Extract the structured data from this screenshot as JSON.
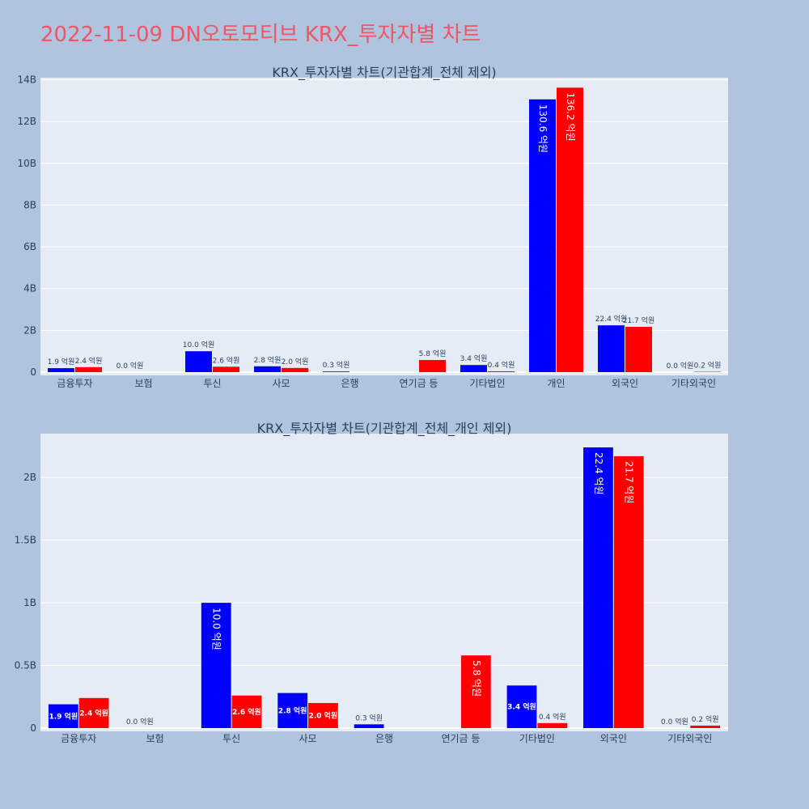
{
  "title": "2022-11-09 DN오토모티브 KRX_투자자별 차트",
  "colors": {
    "background": "#b0c4de",
    "plot_bg": "#e5ecf6",
    "buy": "#0000ff",
    "sell": "#ff0000",
    "title": "#ef5566"
  },
  "chart_data": [
    {
      "type": "bar",
      "title": "KRX_투자자별 차트(기관합계_전체 제외)",
      "categories": [
        "금융투자",
        "보험",
        "투신",
        "사모",
        "은행",
        "연기금 등",
        "기타법인",
        "개인",
        "외국인",
        "기타외국인"
      ],
      "series": [
        {
          "values": [
            0.19,
            0.0,
            1.0,
            0.28,
            0.03,
            0.0,
            0.34,
            13.06,
            2.24,
            0.0
          ],
          "labels": [
            "1.9 억원",
            "0.0 억원",
            "10.0 억원",
            "2.8 억원",
            "0.3 억원",
            "",
            "3.4 억원",
            "130.6 억원",
            "22.4 억원",
            "0.0 억원"
          ]
        },
        {
          "values": [
            0.24,
            0.0,
            0.26,
            0.2,
            0.0,
            0.58,
            0.04,
            13.62,
            2.17,
            0.02
          ],
          "labels": [
            "2.4 억원",
            "",
            "2.6 억원",
            "2.0 억원",
            "",
            "5.8 억원",
            "0.4 억원",
            "136.2 억원",
            "21.7 억원",
            "0.2 억원"
          ]
        }
      ],
      "yticks": [
        0,
        2,
        4,
        6,
        8,
        10,
        12,
        14
      ],
      "yticklabels": [
        "0",
        "2B",
        "4B",
        "6B",
        "8B",
        "10B",
        "12B",
        "14B"
      ],
      "ylim": [
        0,
        14.1
      ],
      "grid": true
    },
    {
      "type": "bar",
      "title": "KRX_투자자별 차트(기관합계_전체_개인 제외)",
      "categories": [
        "금융투자",
        "보험",
        "투신",
        "사모",
        "은행",
        "연기금 등",
        "기타법인",
        "외국인",
        "기타외국인"
      ],
      "series": [
        {
          "values": [
            0.19,
            0.0,
            1.0,
            0.28,
            0.03,
            0.0,
            0.34,
            2.24,
            0.0
          ],
          "labels": [
            "1.9 억원",
            "0.0 억원",
            "10.0 억원",
            "2.8 억원",
            "0.3 억원",
            "",
            "3.4 억원",
            "22.4 억원",
            "0.0 억원"
          ]
        },
        {
          "values": [
            0.24,
            0.0,
            0.26,
            0.2,
            0.0,
            0.58,
            0.04,
            2.17,
            0.02
          ],
          "labels": [
            "2.4 억원",
            "",
            "2.6 억원",
            "2.0 억원",
            "",
            "5.8 억원",
            "0.4 억원",
            "21.7 억원",
            "0.2 억원"
          ]
        }
      ],
      "yticks": [
        0,
        0.5,
        1,
        1.5,
        2
      ],
      "yticklabels": [
        "0",
        "0.5B",
        "1B",
        "1.5B",
        "2B"
      ],
      "ylim": [
        0,
        2.35
      ],
      "grid": true
    }
  ]
}
